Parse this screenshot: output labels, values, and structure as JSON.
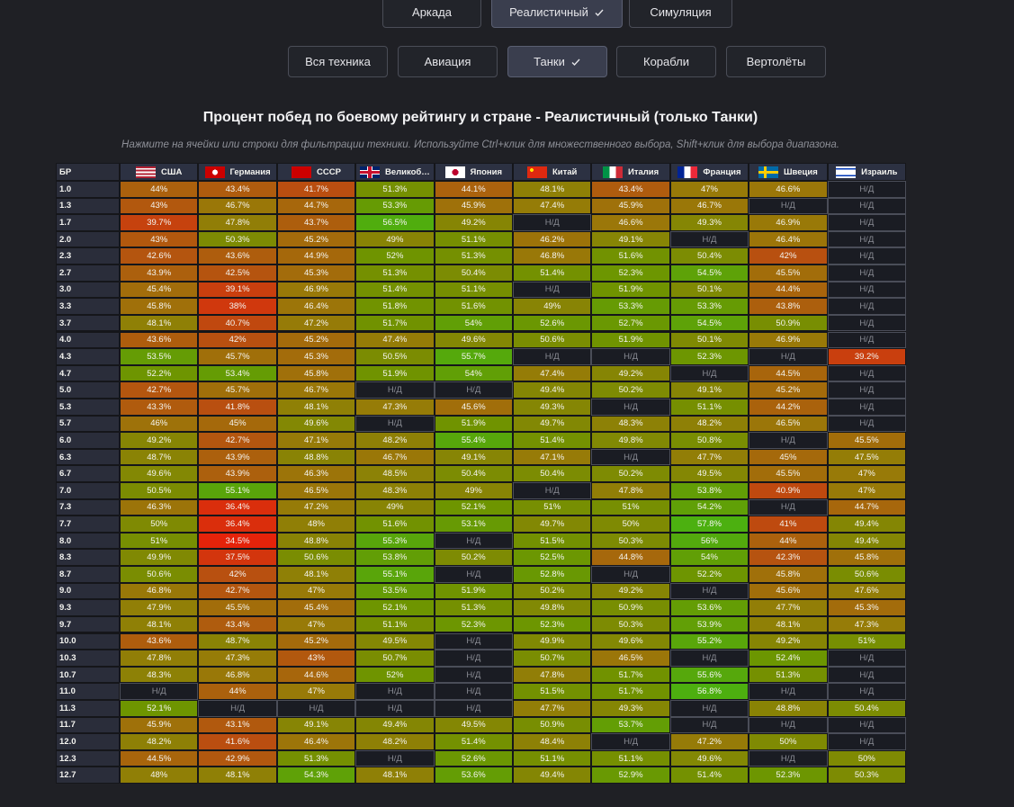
{
  "filters": {
    "modes": [
      "Аркада",
      "Реалистичный",
      "Симуляция"
    ],
    "vehicle_types": [
      "Вся техника",
      "Авиация",
      "Танки",
      "Корабли",
      "Вертолёты"
    ]
  },
  "title": "Процент побед по боевому рейтингу и стране - Реалистичный (только Танки)",
  "subtitle": "Нажмите на ячейки или строки для фильтрации техники. Используйте Ctrl+клик для множественного выбора, Shift+клик для выбора диапазона.",
  "table": {
    "header": [
      "БР",
      "США",
      "Германия",
      "СССР",
      "Великоб…",
      "Япония",
      "Китай",
      "Италия",
      "Франция",
      "Швеция",
      "Израиль"
    ],
    "rows": [
      [
        "1.0",
        "44%",
        "43.4%",
        "41.7%",
        "51.3%",
        "44.1%",
        "48.1%",
        "43.4%",
        "47%",
        "46.6%",
        "Н/Д"
      ],
      [
        "1.3",
        "43%",
        "46.7%",
        "44.7%",
        "53.3%",
        "45.9%",
        "47.4%",
        "45.9%",
        "46.7%",
        "Н/Д",
        "Н/Д"
      ],
      [
        "1.7",
        "39.7%",
        "47.8%",
        "43.7%",
        "56.5%",
        "49.2%",
        "Н/Д",
        "46.6%",
        "49.3%",
        "46.9%",
        "Н/Д"
      ],
      [
        "2.0",
        "43%",
        "50.3%",
        "45.2%",
        "49%",
        "51.1%",
        "46.2%",
        "49.1%",
        "Н/Д",
        "46.4%",
        "Н/Д"
      ],
      [
        "2.3",
        "42.6%",
        "43.6%",
        "44.9%",
        "52%",
        "51.3%",
        "46.8%",
        "51.6%",
        "50.4%",
        "42%",
        "Н/Д"
      ],
      [
        "2.7",
        "43.9%",
        "42.5%",
        "45.3%",
        "51.3%",
        "50.4%",
        "51.4%",
        "52.3%",
        "54.5%",
        "45.5%",
        "Н/Д"
      ],
      [
        "3.0",
        "45.4%",
        "39.1%",
        "46.9%",
        "51.4%",
        "51.1%",
        "Н/Д",
        "51.9%",
        "50.1%",
        "44.4%",
        "Н/Д"
      ],
      [
        "3.3",
        "45.8%",
        "38%",
        "46.4%",
        "51.8%",
        "51.6%",
        "49%",
        "53.3%",
        "53.3%",
        "43.8%",
        "Н/Д"
      ],
      [
        "3.7",
        "48.1%",
        "40.7%",
        "47.2%",
        "51.7%",
        "54%",
        "52.6%",
        "52.7%",
        "54.5%",
        "50.9%",
        "Н/Д"
      ],
      [
        "4.0",
        "43.6%",
        "42%",
        "45.2%",
        "47.4%",
        "49.6%",
        "50.6%",
        "51.9%",
        "50.1%",
        "46.9%",
        "Н/Д"
      ],
      [
        "4.3",
        "53.5%",
        "45.7%",
        "45.3%",
        "50.5%",
        "55.7%",
        "Н/Д",
        "Н/Д",
        "52.3%",
        "Н/Д",
        "39.2%"
      ],
      [
        "4.7",
        "52.2%",
        "53.4%",
        "45.8%",
        "51.9%",
        "54%",
        "47.4%",
        "49.2%",
        "Н/Д",
        "44.5%",
        "Н/Д"
      ],
      [
        "5.0",
        "42.7%",
        "45.7%",
        "46.7%",
        "Н/Д",
        "Н/Д",
        "49.4%",
        "50.2%",
        "49.1%",
        "45.2%",
        "Н/Д"
      ],
      [
        "5.3",
        "43.3%",
        "41.8%",
        "48.1%",
        "47.3%",
        "45.6%",
        "49.3%",
        "Н/Д",
        "51.1%",
        "44.2%",
        "Н/Д"
      ],
      [
        "5.7",
        "46%",
        "45%",
        "49.6%",
        "Н/Д",
        "51.9%",
        "49.7%",
        "48.3%",
        "48.2%",
        "46.5%",
        "Н/Д"
      ],
      [
        "6.0",
        "49.2%",
        "42.7%",
        "47.1%",
        "48.2%",
        "55.4%",
        "51.4%",
        "49.8%",
        "50.8%",
        "Н/Д",
        "45.5%"
      ],
      [
        "6.3",
        "48.7%",
        "43.9%",
        "48.8%",
        "46.7%",
        "49.1%",
        "47.1%",
        "Н/Д",
        "47.7%",
        "45%",
        "47.5%"
      ],
      [
        "6.7",
        "49.6%",
        "43.9%",
        "46.3%",
        "48.5%",
        "50.4%",
        "50.4%",
        "50.2%",
        "49.5%",
        "45.5%",
        "47%"
      ],
      [
        "7.0",
        "50.5%",
        "55.1%",
        "46.5%",
        "48.3%",
        "49%",
        "Н/Д",
        "47.8%",
        "53.8%",
        "40.9%",
        "47%"
      ],
      [
        "7.3",
        "46.3%",
        "36.4%",
        "47.2%",
        "49%",
        "52.1%",
        "51%",
        "51%",
        "54.2%",
        "Н/Д",
        "44.7%"
      ],
      [
        "7.7",
        "50%",
        "36.4%",
        "48%",
        "51.6%",
        "53.1%",
        "49.7%",
        "50%",
        "57.8%",
        "41%",
        "49.4%"
      ],
      [
        "8.0",
        "51%",
        "34.5%",
        "48.8%",
        "55.3%",
        "Н/Д",
        "51.5%",
        "50.3%",
        "56%",
        "44%",
        "49.4%"
      ],
      [
        "8.3",
        "49.9%",
        "37.5%",
        "50.6%",
        "53.8%",
        "50.2%",
        "52.5%",
        "44.8%",
        "54%",
        "42.3%",
        "45.8%"
      ],
      [
        "8.7",
        "50.6%",
        "42%",
        "48.1%",
        "55.1%",
        "Н/Д",
        "52.8%",
        "Н/Д",
        "52.2%",
        "45.8%",
        "50.6%"
      ],
      [
        "9.0",
        "46.8%",
        "42.7%",
        "47%",
        "53.5%",
        "51.9%",
        "50.2%",
        "49.2%",
        "Н/Д",
        "45.6%",
        "47.6%"
      ],
      [
        "9.3",
        "47.9%",
        "45.5%",
        "45.4%",
        "52.1%",
        "51.3%",
        "49.8%",
        "50.9%",
        "53.6%",
        "47.7%",
        "45.3%"
      ],
      [
        "9.7",
        "48.1%",
        "43.4%",
        "47%",
        "51.1%",
        "52.3%",
        "52.3%",
        "50.3%",
        "53.9%",
        "48.1%",
        "47.3%"
      ],
      [
        "10.0",
        "43.6%",
        "48.7%",
        "45.2%",
        "49.5%",
        "Н/Д",
        "49.9%",
        "49.6%",
        "55.2%",
        "49.2%",
        "51%"
      ],
      [
        "10.3",
        "47.8%",
        "47.3%",
        "43%",
        "50.7%",
        "Н/Д",
        "50.7%",
        "46.5%",
        "Н/Д",
        "52.4%",
        "Н/Д"
      ],
      [
        "10.7",
        "48.3%",
        "46.8%",
        "44.6%",
        "52%",
        "Н/Д",
        "47.8%",
        "51.7%",
        "55.6%",
        "51.3%",
        "Н/Д"
      ],
      [
        "11.0",
        "Н/Д",
        "44%",
        "47%",
        "Н/Д",
        "Н/Д",
        "51.5%",
        "51.7%",
        "56.8%",
        "Н/Д",
        "Н/Д"
      ],
      [
        "11.3",
        "52.1%",
        "Н/Д",
        "Н/Д",
        "Н/Д",
        "Н/Д",
        "47.7%",
        "49.3%",
        "Н/Д",
        "48.8%",
        "50.4%"
      ],
      [
        "11.7",
        "45.9%",
        "43.1%",
        "49.1%",
        "49.4%",
        "49.5%",
        "50.9%",
        "53.7%",
        "Н/Д",
        "Н/Д",
        "Н/Д"
      ],
      [
        "12.0",
        "48.2%",
        "41.6%",
        "46.4%",
        "48.2%",
        "51.4%",
        "48.4%",
        "Н/Д",
        "47.2%",
        "50%",
        "Н/Д"
      ],
      [
        "12.3",
        "44.5%",
        "42.9%",
        "51.3%",
        "Н/Д",
        "52.6%",
        "51.1%",
        "51.1%",
        "49.6%",
        "Н/Д",
        "50%"
      ],
      [
        "12.7",
        "48%",
        "48.1%",
        "54.3%",
        "48.1%",
        "53.6%",
        "49.4%",
        "52.9%",
        "51.4%",
        "52.3%",
        "50.3%"
      ]
    ]
  }
}
